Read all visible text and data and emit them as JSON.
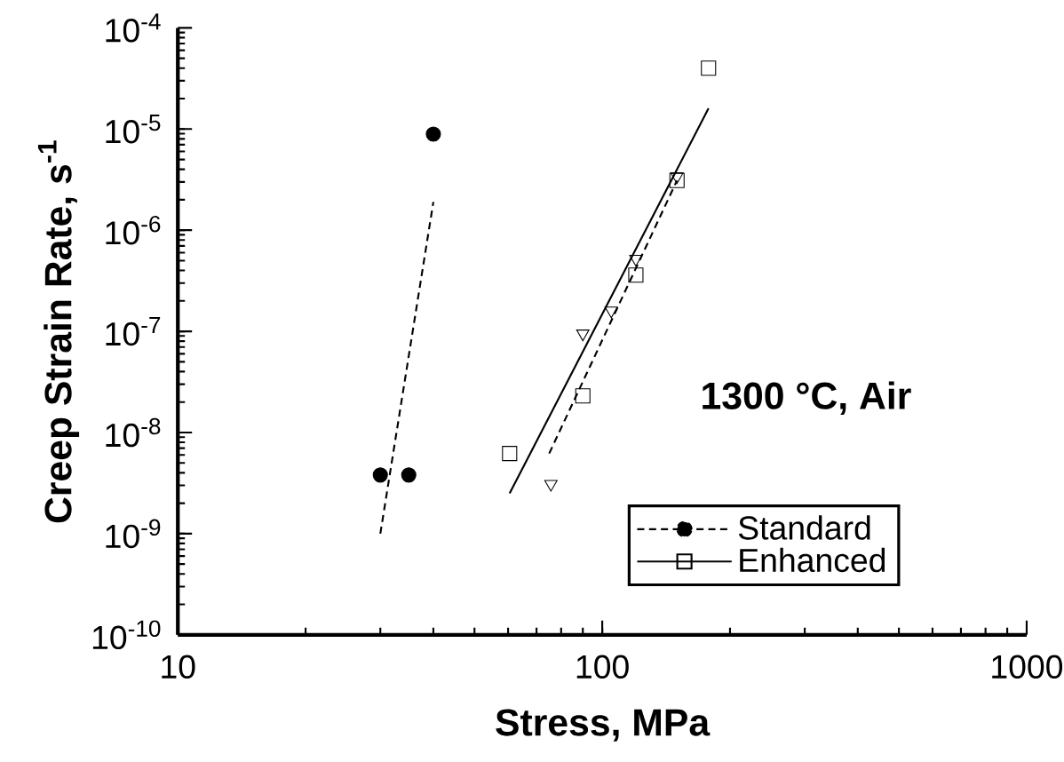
{
  "chart_data": {
    "type": "scatter",
    "xlabel": "Stress, MPa",
    "ylabel": "Creep Strain Rate, s$^{-1}$",
    "legend_title": "1300 °C, Air",
    "log": "xy",
    "xlim": [
      10,
      1000
    ],
    "ylim": [
      1e-10,
      0.0001
    ],
    "xticks": [
      10,
      100,
      1000
    ],
    "yticks": [
      {
        "value": 1e-10,
        "label": "10$^{-10}$"
      },
      {
        "value": 1e-09,
        "label": "10$^{-9}$"
      },
      {
        "value": 1e-08,
        "label": "10$^{-8}$"
      },
      {
        "value": 1e-07,
        "label": "10$^{-7}$"
      },
      {
        "value": 1e-06,
        "label": "10$^{-6}$"
      },
      {
        "value": 1e-05,
        "label": "10$^{-5}$"
      },
      {
        "value": 0.0001,
        "label": "10$^{-4}$"
      }
    ],
    "legend": "bottom right",
    "series": [
      {
        "name": "Standard",
        "marker": "circle",
        "color": "#000000",
        "x": [
          30,
          35,
          40
        ],
        "values": [
          3.8e-09,
          3.8e-09,
          8.9e-06
        ]
      },
      {
        "type": "line",
        "line_style": "dashed",
        "color": "#000000",
        "x": [
          30,
          40
        ],
        "values": [
          1e-09,
          1.9e-06
        ]
      },
      {
        "name": "Enhanced",
        "marker": "square",
        "color": "#000000",
        "x": [
          60.5,
          90,
          120,
          150,
          178
        ],
        "values": [
          6.2e-09,
          2.3e-08,
          3.6e-07,
          3.1e-06,
          4e-05
        ]
      },
      {
        "type": "line",
        "line_style": "solid",
        "color": "#000000",
        "x": [
          60.5,
          178
        ],
        "values": [
          2.5e-09,
          1.6e-05
        ]
      },
      {
        "marker": "triangle",
        "color": "#000000",
        "x": [
          75.7,
          90,
          105,
          120,
          150
        ],
        "values": [
          3.1e-09,
          9.5e-08,
          1.6e-07,
          5.2e-07,
          3.4e-06
        ]
      },
      {
        "type": "line",
        "line_style": "dashed",
        "color": "#000000",
        "x": [
          75,
          150
        ],
        "values": [
          6.2e-09,
          3.1e-06
        ]
      }
    ]
  }
}
